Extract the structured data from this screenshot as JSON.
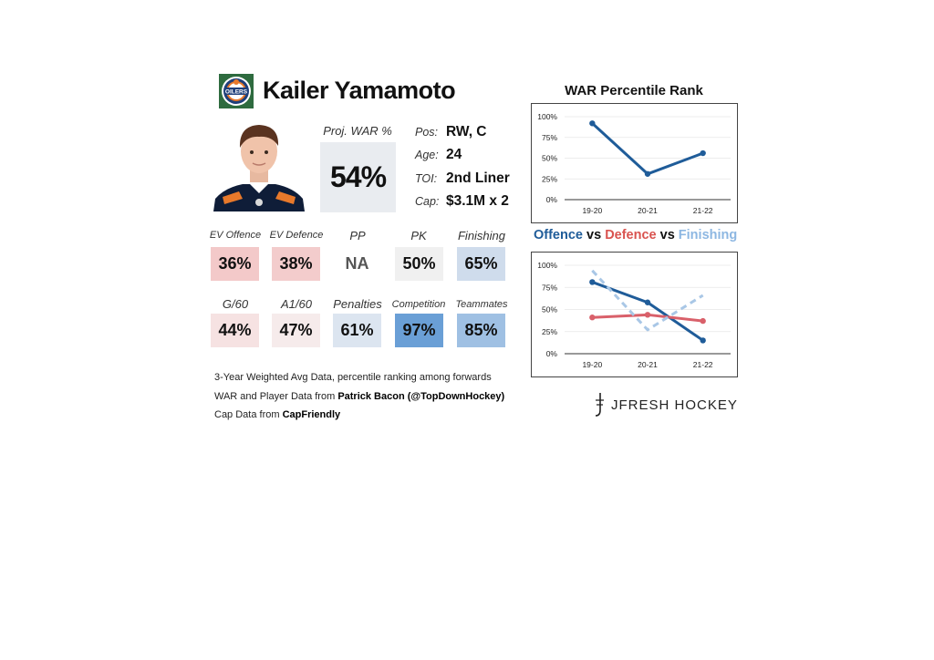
{
  "player": {
    "name": "Kailer Yamamoto",
    "team_logo_text": "OILERS",
    "proj_war_label": "Proj. WAR %",
    "proj_war_value": "54%"
  },
  "info": [
    {
      "label": "Pos:",
      "value": "RW, C"
    },
    {
      "label": "Age:",
      "value": "24"
    },
    {
      "label": "TOI:",
      "value": "2nd Liner"
    },
    {
      "label": "Cap:",
      "value": "$3.1M x 2"
    }
  ],
  "stats_row1": [
    {
      "label": "EV Offence",
      "value": "36%",
      "color": "#f3c9c9"
    },
    {
      "label": "EV Defence",
      "value": "38%",
      "color": "#f3cccc"
    },
    {
      "label": "PP",
      "value": "NA",
      "color": "#ffffff"
    },
    {
      "label": "PK",
      "value": "50%",
      "color": "#f0f0f0"
    },
    {
      "label": "Finishing",
      "value": "65%",
      "color": "#cfdcec"
    }
  ],
  "stats_row2": [
    {
      "label": "G/60",
      "value": "44%",
      "color": "#f6e2e2"
    },
    {
      "label": "A1/60",
      "value": "47%",
      "color": "#f6ebeb"
    },
    {
      "label": "Penalties",
      "value": "61%",
      "color": "#dce5f0"
    },
    {
      "label": "Competition",
      "value": "97%",
      "color": "#6a9fd6"
    },
    {
      "label": "Teammates",
      "value": "85%",
      "color": "#9fc0e3"
    }
  ],
  "credits": {
    "line1": "3-Year Weighted Avg Data, percentile ranking among forwards",
    "line2_prefix": "WAR and Player Data from ",
    "line2_bold": "Patrick Bacon (@TopDownHockey)",
    "line3_prefix": "Cap Data from ",
    "line3_bold": "CapFriendly"
  },
  "brand": "JFRESH HOCKEY",
  "chart_data": [
    {
      "type": "line",
      "title": "WAR Percentile Rank",
      "categories": [
        "19-20",
        "20-21",
        "21-22"
      ],
      "y_ticks": [
        "0%",
        "25%",
        "50%",
        "75%",
        "100%"
      ],
      "ylim": [
        0,
        100
      ],
      "series": [
        {
          "values": [
            92,
            31,
            56
          ],
          "color": "#1f5c99"
        }
      ]
    },
    {
      "type": "line",
      "title_parts": [
        {
          "text": "Offence",
          "color": "#1f5c99"
        },
        {
          "text": " vs ",
          "color": "#111111"
        },
        {
          "text": "Defence",
          "color": "#d9534f"
        },
        {
          "text": " vs ",
          "color": "#111111"
        },
        {
          "text": "Finishing",
          "color": "#8db7e2"
        }
      ],
      "categories": [
        "19-20",
        "20-21",
        "21-22"
      ],
      "y_ticks": [
        "0%",
        "25%",
        "50%",
        "75%",
        "100%"
      ],
      "ylim": [
        0,
        100
      ],
      "series": [
        {
          "name": "Offence",
          "values": [
            81,
            58,
            15
          ],
          "color": "#1f5c99",
          "dashed": false
        },
        {
          "name": "Defence",
          "values": [
            41,
            44,
            37
          ],
          "color": "#d9606a",
          "dashed": false
        },
        {
          "name": "Finishing",
          "values": [
            94,
            27,
            66
          ],
          "color": "#a9c7e6",
          "dashed": true
        }
      ]
    }
  ]
}
